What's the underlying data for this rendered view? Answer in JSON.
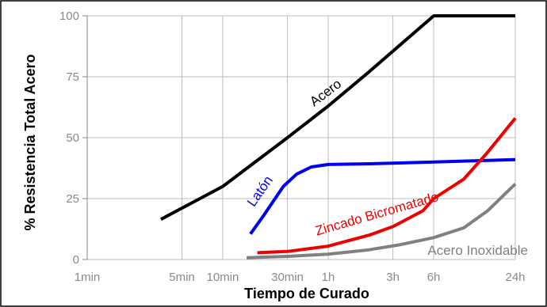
{
  "chart_data": {
    "type": "line",
    "title": "",
    "xlabel": "Tiempo de Curado",
    "ylabel": "% Resistencia Total Acero",
    "x_scale": "log",
    "x_unit": "minutes",
    "x_ticks": [
      {
        "value": 1,
        "label": "1min"
      },
      {
        "value": 5,
        "label": "5min"
      },
      {
        "value": 10,
        "label": "10min"
      },
      {
        "value": 30,
        "label": "30min"
      },
      {
        "value": 60,
        "label": "1h"
      },
      {
        "value": 180,
        "label": "3h"
      },
      {
        "value": 360,
        "label": "6h"
      },
      {
        "value": 1440,
        "label": "24h"
      }
    ],
    "y_ticks": [
      {
        "value": 0,
        "label": "0"
      },
      {
        "value": 25,
        "label": "25"
      },
      {
        "value": 50,
        "label": "50"
      },
      {
        "value": 75,
        "label": "75"
      },
      {
        "value": 100,
        "label": "100"
      }
    ],
    "xlim": [
      1,
      1440
    ],
    "ylim": [
      0,
      100
    ],
    "grid": true,
    "legend": "none",
    "series": [
      {
        "name": "Acero",
        "color": "#000000",
        "points": [
          [
            3.5,
            16.5
          ],
          [
            10,
            30
          ],
          [
            30,
            50
          ],
          [
            60,
            63
          ],
          [
            120,
            77
          ],
          [
            360,
            100
          ],
          [
            1440,
            100
          ]
        ]
      },
      {
        "name": "Latón",
        "color": "#0000ee",
        "points": [
          [
            16,
            10.5
          ],
          [
            20,
            18
          ],
          [
            28,
            30
          ],
          [
            35,
            35
          ],
          [
            45,
            38
          ],
          [
            60,
            39
          ],
          [
            120,
            39.3
          ],
          [
            360,
            40
          ],
          [
            1440,
            41
          ]
        ]
      },
      {
        "name": "Zincado Bicromatado",
        "color": "#ee0000",
        "points": [
          [
            18,
            2.8
          ],
          [
            30,
            3.3
          ],
          [
            60,
            5.5
          ],
          [
            120,
            10
          ],
          [
            180,
            13.5
          ],
          [
            300,
            20
          ],
          [
            360,
            25
          ],
          [
            600,
            33
          ],
          [
            900,
            44
          ],
          [
            1440,
            58
          ]
        ]
      },
      {
        "name": "Acero Inoxidable",
        "color": "#808080",
        "points": [
          [
            15,
            0.7
          ],
          [
            30,
            1.3
          ],
          [
            60,
            2.2
          ],
          [
            120,
            4
          ],
          [
            200,
            6
          ],
          [
            360,
            9
          ],
          [
            600,
            13
          ],
          [
            900,
            20
          ],
          [
            1440,
            31
          ]
        ]
      }
    ]
  }
}
